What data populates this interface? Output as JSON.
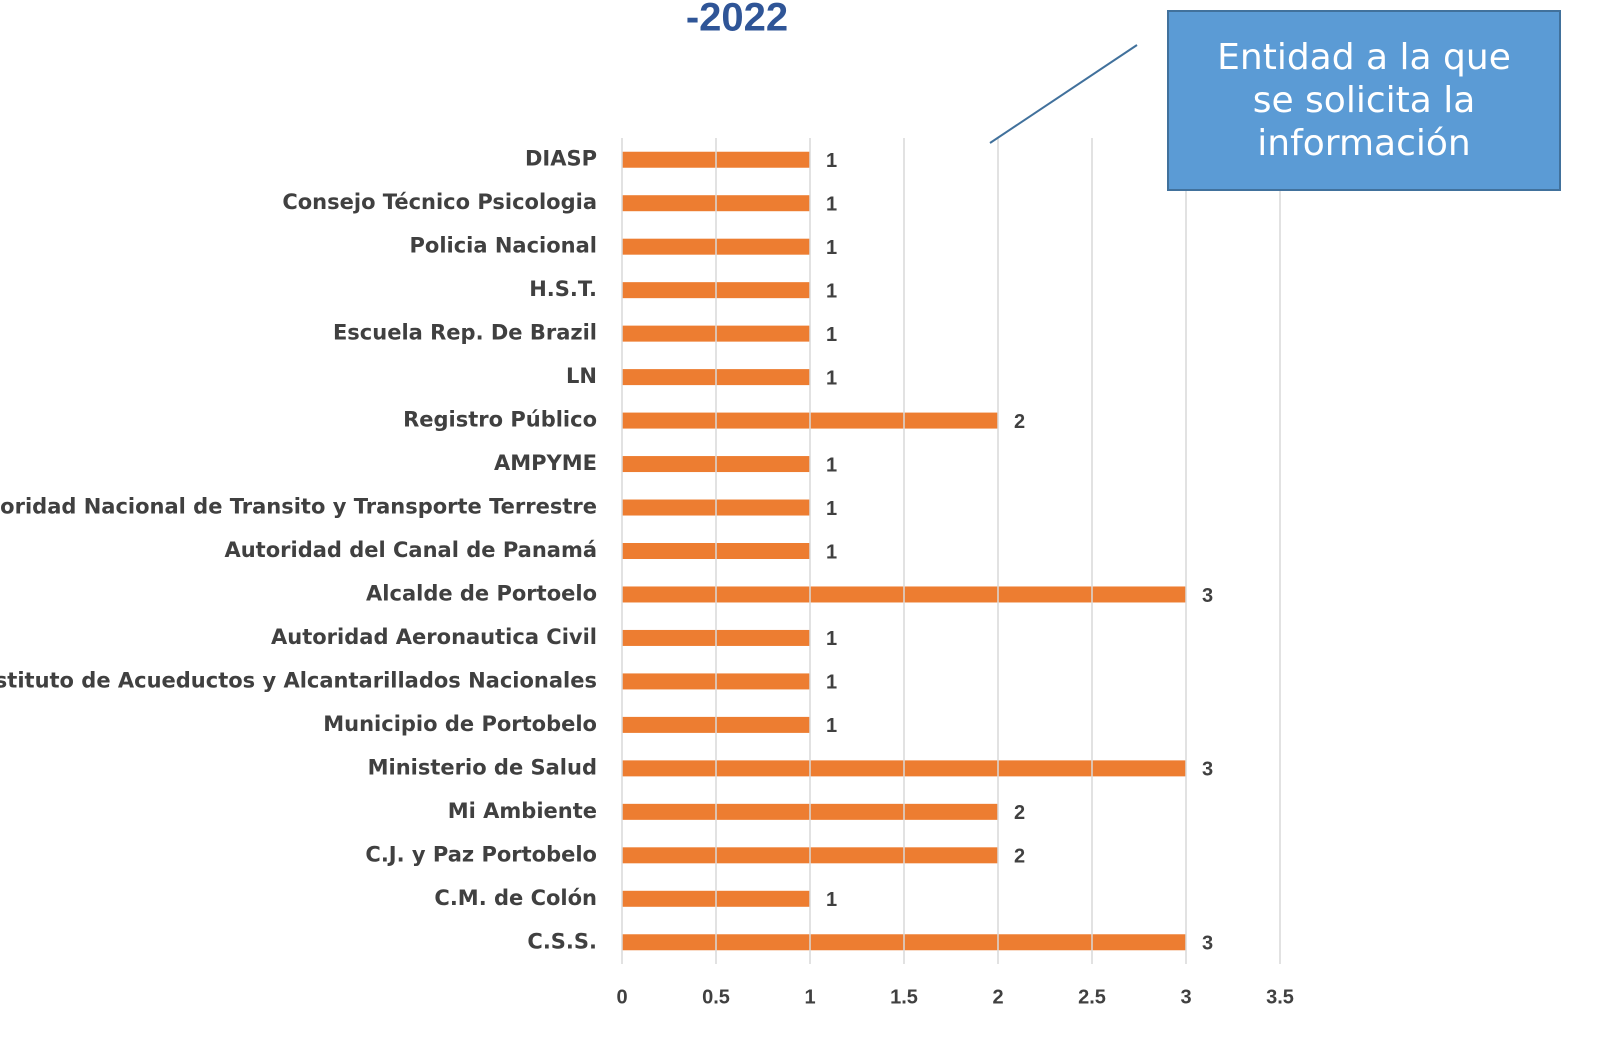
{
  "chart_data": {
    "type": "bar",
    "orientation": "horizontal",
    "title": "-2022",
    "annotation": "Entidad a la que se solicita la información",
    "categories": [
      "DIASP",
      "Consejo Técnico Psicologia",
      "Policia Nacional",
      "H.S.T.",
      "Escuela Rep. De Brazil",
      "LN",
      "Registro Público",
      "AMPYME",
      "Autoridad Nacional de Transito y Transporte Terrestre",
      "Autoridad del Canal de Panamá",
      "Alcalde de Portoelo",
      "Autoridad Aeronautica Civil",
      "Instituto de Acueductos y Alcantarillados Nacionales",
      "Municipio de Portobelo",
      "Ministerio de Salud",
      "Mi Ambiente",
      "C.J. y Paz Portobelo",
      "C.M. de Colón",
      "C.S.S."
    ],
    "values": [
      1,
      1,
      1,
      1,
      1,
      1,
      2,
      1,
      1,
      1,
      3,
      1,
      1,
      1,
      3,
      2,
      2,
      1,
      3
    ],
    "color": "#ed7d31",
    "xlim": [
      0,
      3.5
    ],
    "xticks": [
      0,
      0.5,
      1,
      1.5,
      2,
      2.5,
      3,
      3.5
    ],
    "grid": true
  }
}
